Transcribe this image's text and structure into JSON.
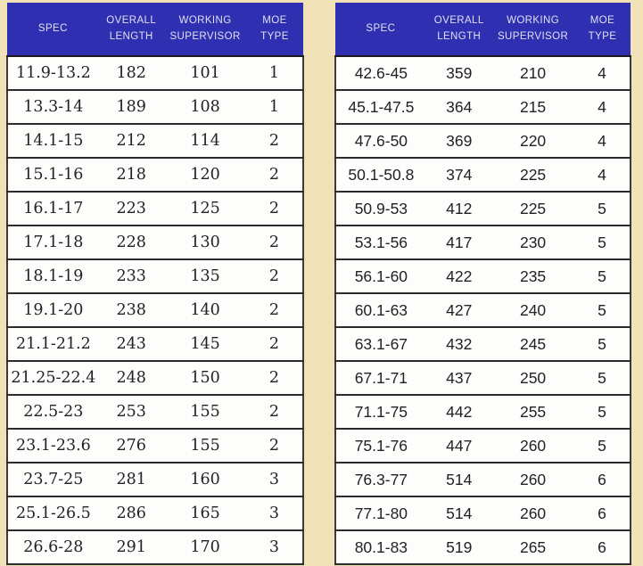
{
  "page": {
    "background_color": "#f1e1b6"
  },
  "colors": {
    "header_bg": "#2f2fb2",
    "header_text": "#dfe1ee",
    "row_bg": "#fdfdfc",
    "row_border": "#2b2b2b",
    "cell_text": "#222222"
  },
  "tables": [
    {
      "name": "left-spec-table",
      "headers": [
        "SPEC",
        "OVERALL\nLENGTH",
        "WORKING\nSUPERVISOR",
        "MOE\nTYPE"
      ],
      "rows": [
        [
          "11.9-13.2",
          "182",
          "101",
          "1"
        ],
        [
          "13.3-14",
          "189",
          "108",
          "1"
        ],
        [
          "14.1-15",
          "212",
          "114",
          "2"
        ],
        [
          "15.1-16",
          "218",
          "120",
          "2"
        ],
        [
          "16.1-17",
          "223",
          "125",
          "2"
        ],
        [
          "17.1-18",
          "228",
          "130",
          "2"
        ],
        [
          "18.1-19",
          "233",
          "135",
          "2"
        ],
        [
          "19.1-20",
          "238",
          "140",
          "2"
        ],
        [
          "21.1-21.2",
          "243",
          "145",
          "2"
        ],
        [
          "21.25-22.4",
          "248",
          "150",
          "2"
        ],
        [
          "22.5-23",
          "253",
          "155",
          "2"
        ],
        [
          "23.1-23.6",
          "276",
          "155",
          "2"
        ],
        [
          "23.7-25",
          "281",
          "160",
          "3"
        ],
        [
          "25.1-26.5",
          "286",
          "165",
          "3"
        ],
        [
          "26.6-28",
          "291",
          "170",
          "3"
        ]
      ]
    },
    {
      "name": "right-spec-table",
      "headers": [
        "SPEC",
        "OVERALL\nLENGTH",
        "WORKING\nSUPERVISOR",
        "MOE\nTYPE"
      ],
      "rows": [
        [
          "42.6-45",
          "359",
          "210",
          "4"
        ],
        [
          "45.1-47.5",
          "364",
          "215",
          "4"
        ],
        [
          "47.6-50",
          "369",
          "220",
          "4"
        ],
        [
          "50.1-50.8",
          "374",
          "225",
          "4"
        ],
        [
          "50.9-53",
          "412",
          "225",
          "5"
        ],
        [
          "53.1-56",
          "417",
          "230",
          "5"
        ],
        [
          "56.1-60",
          "422",
          "235",
          "5"
        ],
        [
          "60.1-63",
          "427",
          "240",
          "5"
        ],
        [
          "63.1-67",
          "432",
          "245",
          "5"
        ],
        [
          "67.1-71",
          "437",
          "250",
          "5"
        ],
        [
          "71.1-75",
          "442",
          "255",
          "5"
        ],
        [
          "75.1-76",
          "447",
          "260",
          "5"
        ],
        [
          "76.3-77",
          "514",
          "260",
          "6"
        ],
        [
          "77.1-80",
          "514",
          "260",
          "6"
        ],
        [
          "80.1-83",
          "519",
          "265",
          "6"
        ]
      ]
    }
  ]
}
